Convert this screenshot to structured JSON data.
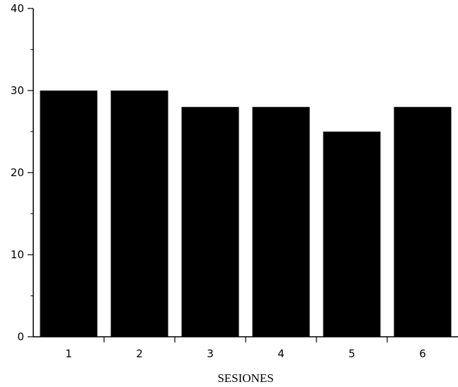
{
  "chart_data": {
    "type": "bar",
    "categories": [
      "1",
      "2",
      "3",
      "4",
      "5",
      "6"
    ],
    "values": [
      30,
      30,
      28,
      28,
      25,
      28
    ],
    "title": "",
    "xlabel": "SESIONES",
    "ylabel": "",
    "ylim": [
      0,
      40
    ],
    "yticks": [
      0,
      10,
      20,
      30,
      40
    ],
    "grid": false,
    "bar_color": "#000000"
  }
}
